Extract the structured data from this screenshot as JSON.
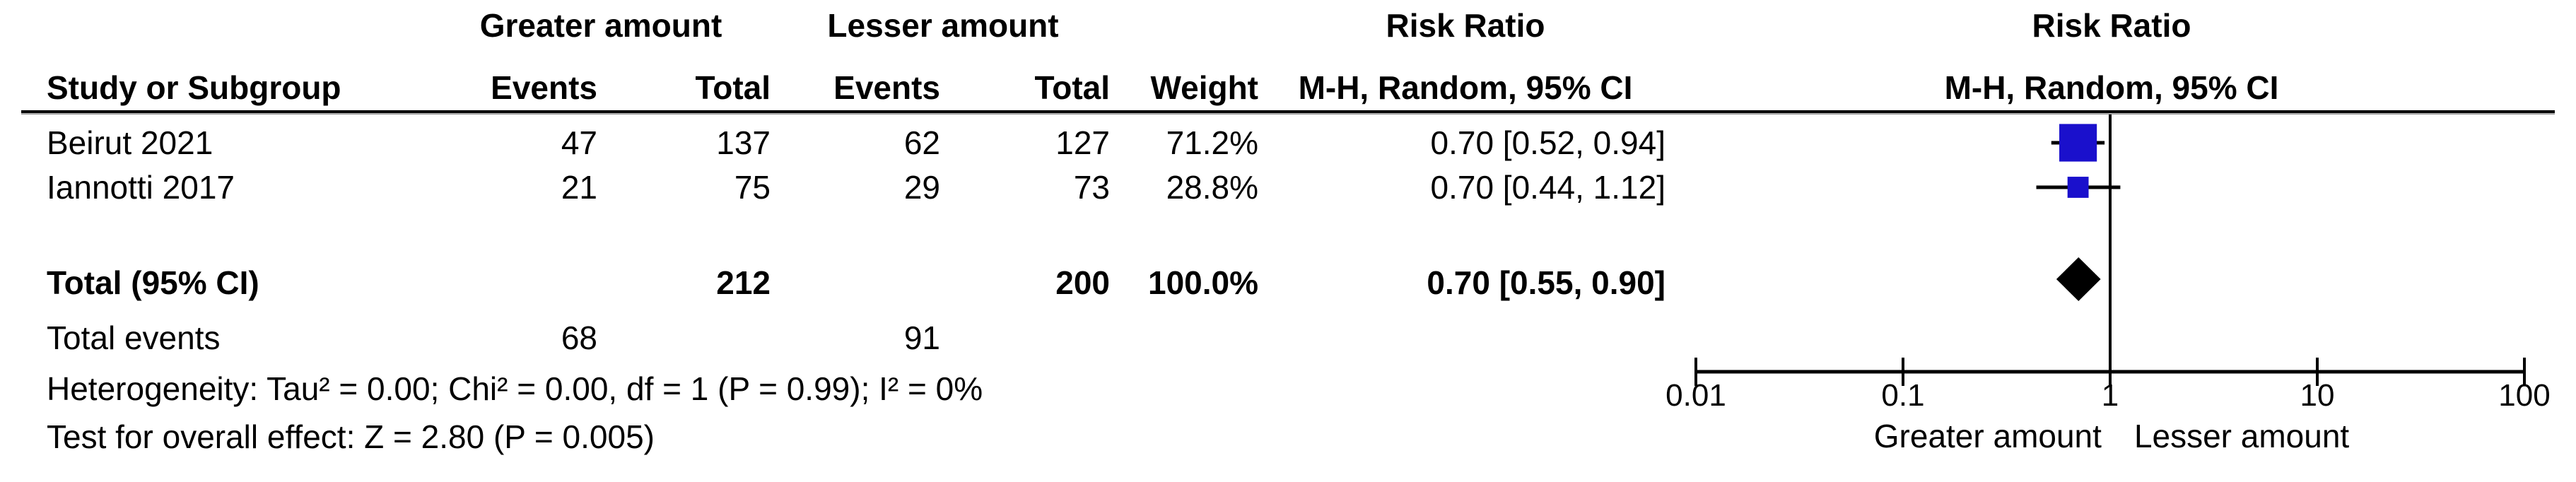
{
  "table": {
    "group_headers": {
      "greater": "Greater amount",
      "lesser": "Lesser amount",
      "risk_ratio": "Risk Ratio"
    },
    "col_headers": {
      "study": "Study or Subgroup",
      "events": "Events",
      "total": "Total",
      "weight": "Weight",
      "mh_ci": "M-H, Random, 95% CI"
    },
    "rows": [
      {
        "study": "Beirut 2021",
        "events1": "47",
        "total1": "137",
        "events2": "62",
        "total2": "127",
        "weight": "71.2%",
        "ci": "0.70 [0.52, 0.94]"
      },
      {
        "study": "Iannotti 2017",
        "events1": "21",
        "total1": "75",
        "events2": "29",
        "total2": "73",
        "weight": "28.8%",
        "ci": "0.70 [0.44, 1.12]"
      }
    ],
    "total_row": {
      "label": "Total (95% CI)",
      "total1": "212",
      "total2": "200",
      "weight": "100.0%",
      "ci": "0.70 [0.55, 0.90]"
    },
    "total_events_row": {
      "label": "Total events",
      "events1": "68",
      "events2": "91"
    },
    "heterogeneity": "Heterogeneity: Tau² = 0.00; Chi² = 0.00, df = 1 (P = 0.99); I² = 0%",
    "overall_effect": "Test for overall effect: Z = 2.80 (P = 0.005)"
  },
  "axis": {
    "tick_labels": [
      "0.01",
      "0.1",
      "1",
      "10",
      "100"
    ],
    "left_label": "Greater amount",
    "right_label": "Lesser amount"
  },
  "colors": {
    "square": "#1a10cc",
    "diamond": "#000000",
    "line": "#000000"
  },
  "chart_data": {
    "type": "forest",
    "effect_measure": "Risk Ratio",
    "method": "M-H, Random, 95% CI",
    "x_scale": "log10",
    "x_ticks": [
      0.01,
      0.1,
      1,
      10,
      100
    ],
    "xlim": [
      0.01,
      100
    ],
    "no_effect_value": 1,
    "favours_left": "Greater amount",
    "favours_right": "Lesser amount",
    "studies": [
      {
        "name": "Beirut 2021",
        "events_exp": 47,
        "total_exp": 137,
        "events_ctrl": 62,
        "total_ctrl": 127,
        "weight_pct": 71.2,
        "estimate": 0.7,
        "ci_low": 0.52,
        "ci_high": 0.94
      },
      {
        "name": "Iannotti 2017",
        "events_exp": 21,
        "total_exp": 75,
        "events_ctrl": 29,
        "total_ctrl": 73,
        "weight_pct": 28.8,
        "estimate": 0.7,
        "ci_low": 0.44,
        "ci_high": 1.12
      }
    ],
    "total": {
      "label": "Total (95% CI)",
      "total_exp": 212,
      "total_ctrl": 200,
      "total_events_exp": 68,
      "total_events_ctrl": 91,
      "weight_pct": 100.0,
      "estimate": 0.7,
      "ci_low": 0.55,
      "ci_high": 0.9
    },
    "heterogeneity": {
      "tau2": 0.0,
      "chi2": 0.0,
      "df": 1,
      "p": 0.99,
      "i2_pct": 0
    },
    "overall_effect": {
      "z": 2.8,
      "p": 0.005
    }
  }
}
